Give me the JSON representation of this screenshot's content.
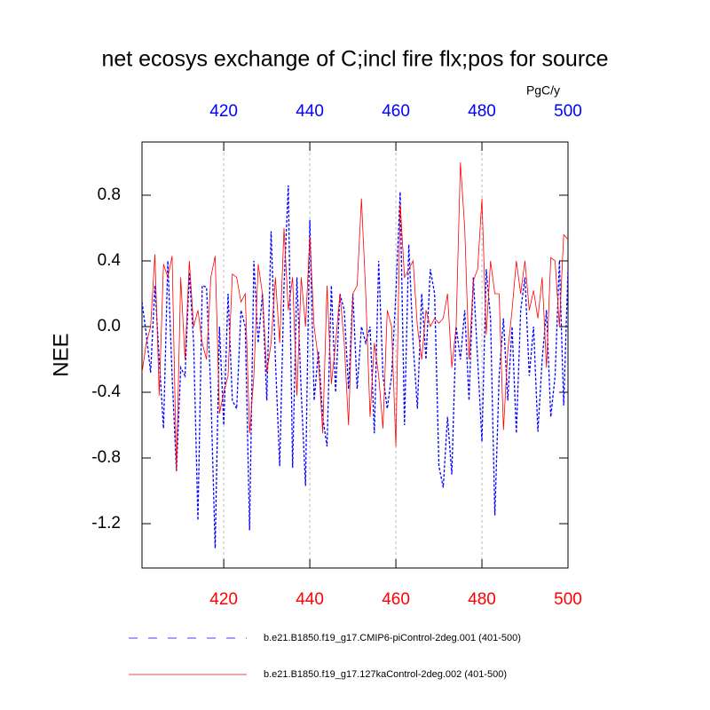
{
  "chart_data": {
    "type": "line",
    "title": "net ecosys exchange of C;incl fire flx;pos for source",
    "units": "PgC/y",
    "ylabel": "NEE",
    "x": [
      401,
      402,
      403,
      404,
      405,
      406,
      407,
      408,
      409,
      410,
      411,
      412,
      413,
      414,
      415,
      416,
      417,
      418,
      419,
      420,
      421,
      422,
      423,
      424,
      425,
      426,
      427,
      428,
      429,
      430,
      431,
      432,
      433,
      434,
      435,
      436,
      437,
      438,
      439,
      440,
      441,
      442,
      443,
      444,
      445,
      446,
      447,
      448,
      449,
      450,
      451,
      452,
      453,
      454,
      455,
      456,
      457,
      458,
      459,
      460,
      461,
      462,
      463,
      464,
      465,
      466,
      467,
      468,
      469,
      470,
      471,
      472,
      473,
      474,
      475,
      476,
      477,
      478,
      479,
      480,
      481,
      482,
      483,
      484,
      485,
      486,
      487,
      488,
      489,
      490,
      491,
      492,
      493,
      494,
      495,
      496,
      497,
      498,
      499,
      500
    ],
    "series": [
      {
        "name": "b.e21.B1850.f19_g17.CMIP6-piControl-2deg.001 (401-500)",
        "color": "#0000ff",
        "dash": true,
        "values": [
          0.15,
          -0.05,
          -0.28,
          0.25,
          -0.2,
          -0.62,
          0.4,
          -0.3,
          -0.88,
          -0.25,
          -0.3,
          0.33,
          -0.1,
          -1.18,
          0.25,
          0.24,
          -0.4,
          -1.35,
          0.0,
          -0.6,
          0.2,
          -0.45,
          -0.5,
          0.1,
          0.0,
          -1.24,
          0.4,
          -0.1,
          0.2,
          -0.45,
          0.58,
          -0.2,
          -0.85,
          0.25,
          0.86,
          -0.86,
          0.3,
          -0.4,
          -0.97,
          0.65,
          -0.45,
          -0.15,
          -0.55,
          -0.73,
          0.25,
          -0.4,
          0.2,
          0.1,
          -0.38,
          0.2,
          -0.38,
          0.0,
          -0.1,
          0.0,
          -0.65,
          0.4,
          -0.3,
          -0.5,
          -0.3,
          0.2,
          0.82,
          -0.6,
          0.5,
          -0.1,
          -0.5,
          0.2,
          -0.2,
          0.35,
          0.2,
          -0.85,
          -0.98,
          -0.55,
          -0.9,
          0.0,
          -0.2,
          0.1,
          -0.45,
          0.3,
          -0.2,
          -0.7,
          0.35,
          0.05,
          -1.15,
          -0.3,
          0.05,
          -0.45,
          0.0,
          -0.65,
          0.1,
          0.3,
          -0.3,
          0.0,
          -0.64,
          -0.2,
          0.1,
          -0.55,
          -0.3,
          0.4,
          -0.48,
          0.35
        ]
      },
      {
        "name": "b.e21.B1850.f19_g17.127kaControl-2deg.002 (401-500)",
        "color": "#ff0000",
        "dash": false,
        "values": [
          -0.28,
          -0.1,
          0.0,
          0.44,
          -0.42,
          0.38,
          0.3,
          0.43,
          -0.88,
          0.3,
          -0.2,
          0.4,
          0.0,
          0.1,
          -0.1,
          -0.2,
          0.3,
          0.43,
          -0.53,
          -0.4,
          -0.3,
          0.32,
          0.3,
          0.15,
          0.2,
          -0.65,
          -0.3,
          0.38,
          0.2,
          -0.28,
          -0.1,
          0.3,
          -0.1,
          0.6,
          0.1,
          0.3,
          -0.42,
          0.3,
          0.0,
          0.55,
          0.0,
          -0.2,
          -0.65,
          0.25,
          -0.35,
          -0.1,
          0.2,
          -0.1,
          -0.6,
          0.2,
          0.25,
          0.78,
          0.2,
          -0.55,
          -0.1,
          -0.3,
          -0.62,
          0.1,
          0.0,
          -0.73,
          0.75,
          0.3,
          0.35,
          0.4,
          0.0,
          -0.2,
          0.1,
          0.0,
          0.05,
          0.02,
          0.05,
          0.2,
          -0.25,
          0.0,
          1.0,
          0.6,
          -0.2,
          0.28,
          0.35,
          0.78,
          -0.05,
          0.4,
          0.2,
          0.2,
          -0.63,
          -0.15,
          0.1,
          0.4,
          0.2,
          0.4,
          0.1,
          0.22,
          0.05,
          0.3,
          -0.25,
          0.42,
          0.4,
          0.0,
          0.56,
          0.53
        ]
      }
    ],
    "xlim": [
      401,
      500
    ],
    "xticks": [
      420,
      440,
      460,
      480,
      500
    ],
    "ylim": [
      -1.47,
      1.124
    ],
    "yticks": [
      -1.2,
      -0.8,
      -0.4,
      {
        "value": 0,
        "label": "0.0"
      },
      0.4,
      0.8
    ],
    "xgrid": true
  }
}
